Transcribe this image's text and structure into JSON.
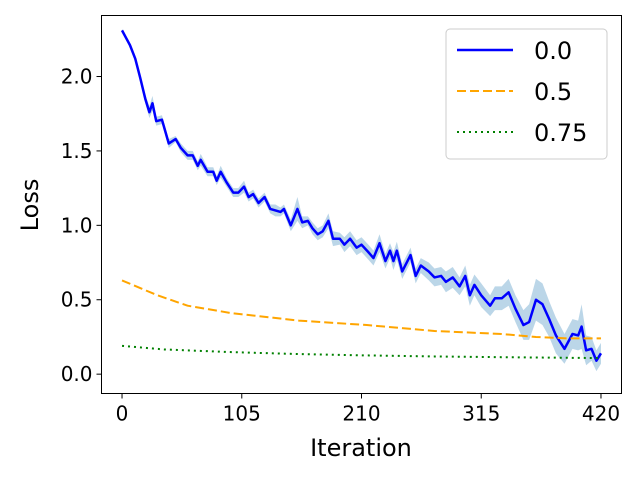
{
  "chart_data": {
    "type": "line",
    "title": "",
    "xlabel": "Iteration",
    "ylabel": "Loss",
    "xlim": [
      -18,
      438
    ],
    "ylim": [
      -0.13,
      2.41
    ],
    "xticks": [
      0,
      105,
      210,
      315,
      420
    ],
    "xtick_labels": [
      "0",
      "105",
      "210",
      "315",
      "420"
    ],
    "yticks": [
      0.0,
      0.5,
      1.0,
      1.5,
      2.0
    ],
    "ytick_labels": [
      "0.0",
      "0.5",
      "1.0",
      "1.5",
      "2.0"
    ],
    "grid": false,
    "legend": {
      "placement": "top-right",
      "entries": [
        "0.0",
        "0.5",
        "0.75"
      ]
    },
    "series": [
      {
        "name": "0.0",
        "color": "#0000ff",
        "style": "solid",
        "band_color": "#1f77b4",
        "x": [
          0,
          7,
          11.6,
          16,
          20.4,
          24,
          26.7,
          30,
          35,
          41,
          47,
          51.6,
          57.5,
          62,
          66.4,
          69,
          75,
          80,
          83,
          86.5,
          91.6,
          97.5,
          102,
          107,
          111,
          115,
          119.7,
          125,
          130,
          134.5,
          139,
          142,
          148,
          153.8,
          158,
          163,
          167,
          171.6,
          176,
          181,
          185,
          191,
          195,
          200,
          205.7,
          210,
          216,
          220.5,
          225.8,
          231,
          235,
          238,
          241,
          245.7,
          253,
          257.5,
          262,
          269,
          274,
          279.8,
          284,
          290,
          296,
          301,
          305,
          309,
          315,
          322.8,
          327,
          333,
          339,
          345,
          352,
          357,
          363,
          368.7,
          374.6,
          380.5,
          388,
          395,
          400,
          403,
          407,
          411.7,
          416,
          420
        ],
        "y": [
          2.31,
          2.21,
          2.12,
          1.99,
          1.85,
          1.76,
          1.82,
          1.7,
          1.71,
          1.55,
          1.58,
          1.52,
          1.47,
          1.47,
          1.4,
          1.44,
          1.36,
          1.36,
          1.3,
          1.36,
          1.29,
          1.22,
          1.22,
          1.26,
          1.19,
          1.21,
          1.15,
          1.19,
          1.11,
          1.1,
          1.09,
          1.11,
          1.0,
          1.11,
          1.02,
          1.03,
          0.98,
          0.94,
          0.96,
          1.03,
          0.91,
          0.91,
          0.87,
          0.91,
          0.85,
          0.87,
          0.82,
          0.78,
          0.88,
          0.76,
          0.83,
          0.76,
          0.83,
          0.69,
          0.8,
          0.66,
          0.73,
          0.69,
          0.65,
          0.66,
          0.62,
          0.65,
          0.59,
          0.66,
          0.53,
          0.6,
          0.53,
          0.46,
          0.51,
          0.51,
          0.55,
          0.44,
          0.33,
          0.35,
          0.5,
          0.47,
          0.37,
          0.26,
          0.17,
          0.27,
          0.26,
          0.32,
          0.16,
          0.17,
          0.09,
          0.14
        ],
        "std": [
          0.01,
          0.01,
          0.01,
          0.02,
          0.03,
          0.04,
          0.05,
          0.03,
          0.03,
          0.03,
          0.02,
          0.03,
          0.03,
          0.03,
          0.03,
          0.04,
          0.03,
          0.03,
          0.03,
          0.04,
          0.03,
          0.03,
          0.03,
          0.04,
          0.03,
          0.03,
          0.03,
          0.03,
          0.03,
          0.04,
          0.03,
          0.03,
          0.04,
          0.08,
          0.04,
          0.03,
          0.04,
          0.04,
          0.04,
          0.05,
          0.05,
          0.04,
          0.05,
          0.05,
          0.05,
          0.05,
          0.05,
          0.05,
          0.06,
          0.05,
          0.05,
          0.06,
          0.06,
          0.05,
          0.05,
          0.05,
          0.05,
          0.06,
          0.06,
          0.06,
          0.07,
          0.07,
          0.06,
          0.07,
          0.07,
          0.07,
          0.08,
          0.07,
          0.08,
          0.08,
          0.09,
          0.09,
          0.1,
          0.12,
          0.14,
          0.14,
          0.12,
          0.12,
          0.1,
          0.1,
          0.1,
          0.15,
          0.1,
          0.08,
          0.07,
          0.07
        ]
      },
      {
        "name": "0.5",
        "color": "#ffa500",
        "style": "dashed",
        "x": [
          0,
          31,
          57.5,
          96,
          155,
          214.6,
          274,
          333,
          363,
          392,
          420
        ],
        "y": [
          0.63,
          0.53,
          0.46,
          0.41,
          0.36,
          0.33,
          0.29,
          0.27,
          0.25,
          0.24,
          0.24
        ]
      },
      {
        "name": "0.75",
        "color": "#008000",
        "style": "dotted",
        "x": [
          0,
          37,
          96,
          155,
          214,
          274,
          333,
          420
        ],
        "y": [
          0.19,
          0.166,
          0.148,
          0.135,
          0.126,
          0.119,
          0.114,
          0.108
        ]
      }
    ]
  }
}
